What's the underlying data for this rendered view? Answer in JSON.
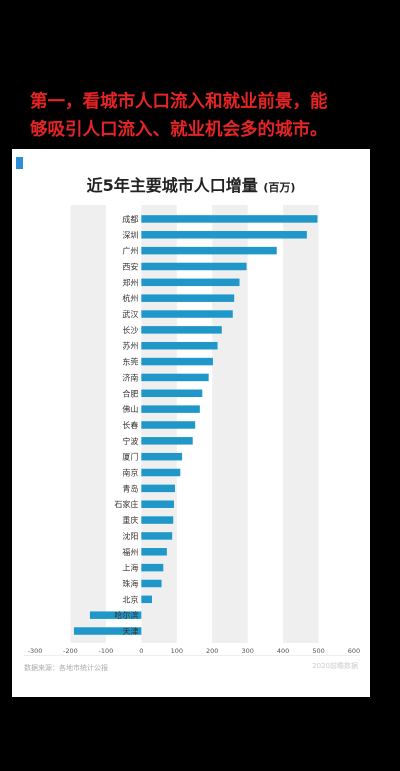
{
  "caption": {
    "line1": "第一，看城市人口流入和就业前景，能",
    "line2": "够吸引人口流入、就业机会多的城市。"
  },
  "chart": {
    "title": "近5年主要城市人口增量",
    "unit": "(百万)",
    "source": "数据来源：各地市统计公报",
    "brand": "2020前瞻数据"
  },
  "chart_data": {
    "type": "bar",
    "orientation": "horizontal",
    "title": "近5年主要城市人口增量 (百万)",
    "categories": [
      "成都",
      "深圳",
      "广州",
      "西安",
      "郑州",
      "杭州",
      "武汉",
      "长沙",
      "苏州",
      "东莞",
      "济南",
      "合肥",
      "佛山",
      "长春",
      "宁波",
      "厦门",
      "南京",
      "青岛",
      "石家庄",
      "重庆",
      "沈阳",
      "福州",
      "上海",
      "珠海",
      "北京",
      "哈尔滨",
      "天津"
    ],
    "values": [
      497,
      467,
      382,
      297,
      277,
      262,
      258,
      227,
      215,
      202,
      190,
      172,
      165,
      152,
      145,
      115,
      110,
      95,
      92,
      90,
      87,
      72,
      62,
      57,
      30,
      -145,
      -190
    ],
    "xlim": [
      -300,
      600
    ],
    "xticks": [
      -300,
      -200,
      -100,
      0,
      100,
      200,
      300,
      400,
      500,
      600
    ],
    "bar_color": "#1f98c9",
    "band_color": "#efefef",
    "grid": false
  }
}
